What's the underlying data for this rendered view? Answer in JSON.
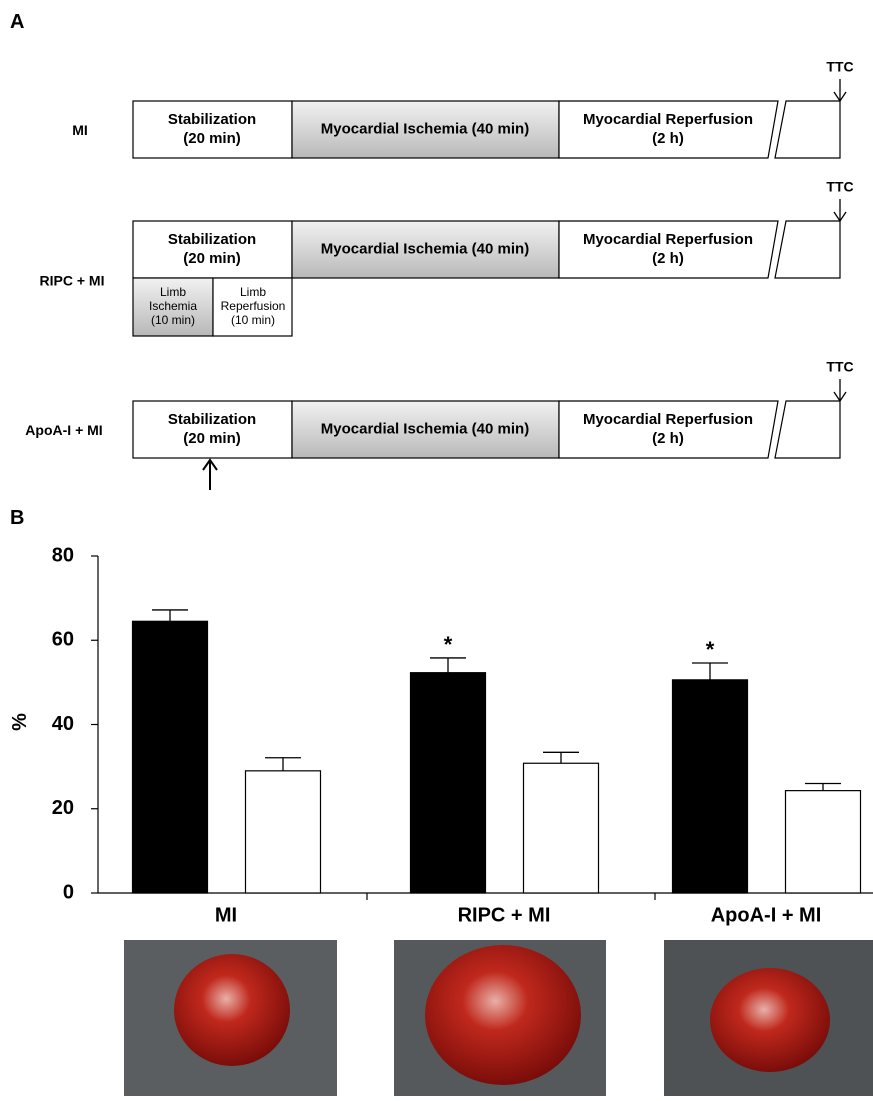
{
  "panel_a": {
    "label": "A",
    "rows": [
      {
        "name": "MI",
        "stages": [
          [
            "Stabilization",
            "(20 min)"
          ],
          [
            "Myocardial Ischemia (40 min)"
          ],
          [
            "Myocardial Reperfusion",
            "(2 h)"
          ]
        ],
        "endpoint": "TTC"
      },
      {
        "name": "RIPC + MI",
        "stages": [
          [
            "Stabilization",
            "(20 min)"
          ],
          [
            "Myocardial Ischemia (40 min)"
          ],
          [
            "Myocardial Reperfusion",
            "(2 h)"
          ]
        ],
        "endpoint": "TTC",
        "sub_stages": [
          [
            "Limb",
            "Ischemia",
            "(10 min)"
          ],
          [
            "Limb",
            "Reperfusion",
            "(10 min)"
          ]
        ]
      },
      {
        "name": "ApoA-I + MI",
        "stages": [
          [
            "Stabilization",
            "(20 min)"
          ],
          [
            "Myocardial Ischemia (40 min)"
          ],
          [
            "Myocardial Reperfusion",
            "(2 h)"
          ]
        ],
        "endpoint": "TTC"
      }
    ]
  },
  "chart_data": {
    "type": "bar",
    "panel_label": "B",
    "y_label": "%",
    "categories": [
      "MI",
      "RIPC + MI",
      "ApoA-I + MI"
    ],
    "series": [
      {
        "color": "#000000",
        "values": [
          64.5,
          52.3,
          50.6
        ],
        "errors": [
          2.7,
          3.5,
          4.0
        ],
        "significance": [
          null,
          "*",
          "*"
        ]
      },
      {
        "color": "#ffffff",
        "values": [
          29.0,
          30.8,
          24.3
        ],
        "errors": [
          3.1,
          2.6,
          1.7
        ]
      }
    ],
    "ylim": [
      0,
      80
    ],
    "yticks": [
      0,
      20,
      40,
      60,
      80
    ]
  }
}
